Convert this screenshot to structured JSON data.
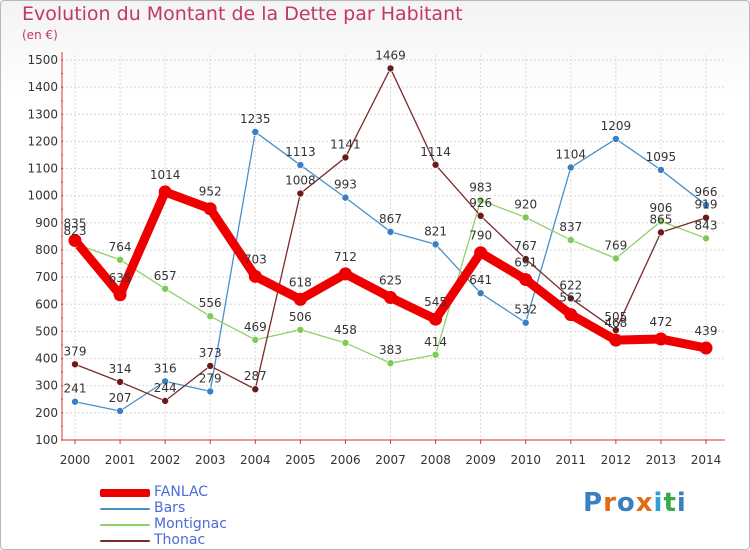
{
  "title": "Evolution du Montant de la Dette par Habitant",
  "unit": "(en €)",
  "brand": {
    "letters": [
      "P",
      "r",
      "o",
      "x",
      "i",
      "t",
      "i"
    ],
    "colors": [
      "#3a7fc0",
      "#e06b1a",
      "#3a7fc0",
      "#e06b1a",
      "#2da0d6",
      "#3aa84a",
      "#3a7fc0"
    ]
  },
  "chart_data": {
    "type": "line",
    "title": "Evolution du Montant de la Dette par Habitant",
    "ylabel": "(en €)",
    "ylim": [
      100,
      1500
    ],
    "yticks": [
      100,
      200,
      300,
      400,
      500,
      600,
      700,
      800,
      900,
      1000,
      1100,
      1200,
      1300,
      1400,
      1500
    ],
    "x": [
      "2000",
      "2001",
      "2002",
      "2003",
      "2004",
      "2005",
      "2006",
      "2007",
      "2008",
      "2009",
      "2010",
      "2011",
      "2012",
      "2013",
      "2014"
    ],
    "grid": true,
    "legend_position": "bottom-left",
    "series": [
      {
        "name": "Bars",
        "color": "#4a90c8",
        "marker_color": "#3a7fbf",
        "values": [
          241,
          207,
          316,
          279,
          1235,
          1113,
          993,
          867,
          821,
          641,
          532,
          1104,
          1209,
          1095,
          966
        ]
      },
      {
        "name": "Montignac",
        "color": "#8fd06a",
        "marker_color": "#7fcc55",
        "values": [
          823,
          764,
          657,
          556,
          469,
          506,
          458,
          383,
          414,
          983,
          920,
          837,
          769,
          906,
          843
        ]
      },
      {
        "name": "Thonac",
        "color": "#7a2a2a",
        "marker_color": "#6b1a1a",
        "values": [
          379,
          314,
          244,
          373,
          287,
          1008,
          1141,
          1469,
          1114,
          926,
          767,
          622,
          505,
          865,
          919
        ]
      },
      {
        "name": "FANLAC",
        "color": "#ee0000",
        "marker_color": "#ee0000",
        "values": [
          835,
          635,
          1014,
          952,
          703,
          618,
          712,
          625,
          545,
          790,
          691,
          562,
          468,
          472,
          439
        ]
      }
    ]
  },
  "legend_order": [
    "FANLAC",
    "Bars",
    "Montignac",
    "Thonac"
  ]
}
